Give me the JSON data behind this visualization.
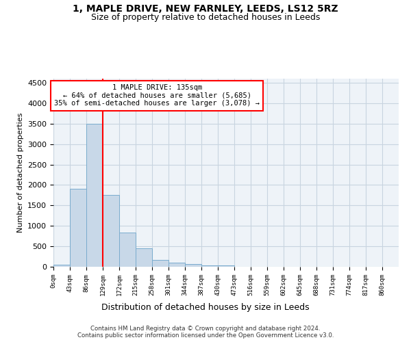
{
  "title": "1, MAPLE DRIVE, NEW FARNLEY, LEEDS, LS12 5RZ",
  "subtitle": "Size of property relative to detached houses in Leeds",
  "xlabel": "Distribution of detached houses by size in Leeds",
  "ylabel": "Number of detached properties",
  "bar_color": "#c8d8e8",
  "bar_edge_color": "#7aacce",
  "grid_color": "#c8d4e0",
  "background_color": "#eef3f8",
  "vline_x": 3,
  "vline_color": "red",
  "annotation_text": "1 MAPLE DRIVE: 135sqm\n← 64% of detached houses are smaller (5,685)\n35% of semi-detached houses are larger (3,078) →",
  "annotation_box_color": "white",
  "annotation_box_edge": "red",
  "tick_labels": [
    "0sqm",
    "43sqm",
    "86sqm",
    "129sqm",
    "172sqm",
    "215sqm",
    "258sqm",
    "301sqm",
    "344sqm",
    "387sqm",
    "430sqm",
    "473sqm",
    "516sqm",
    "559sqm",
    "602sqm",
    "645sqm",
    "688sqm",
    "731sqm",
    "774sqm",
    "817sqm",
    "860sqm"
  ],
  "bar_heights": [
    50,
    1900,
    3500,
    1750,
    840,
    450,
    175,
    100,
    65,
    40,
    40,
    0,
    0,
    0,
    0,
    0,
    0,
    0,
    0,
    0,
    0
  ],
  "ylim": [
    0,
    4600
  ],
  "yticks": [
    0,
    500,
    1000,
    1500,
    2000,
    2500,
    3000,
    3500,
    4000,
    4500
  ],
  "footer": "Contains HM Land Registry data © Crown copyright and database right 2024.\nContains public sector information licensed under the Open Government Licence v3.0.",
  "title_fontsize": 10,
  "subtitle_fontsize": 9
}
